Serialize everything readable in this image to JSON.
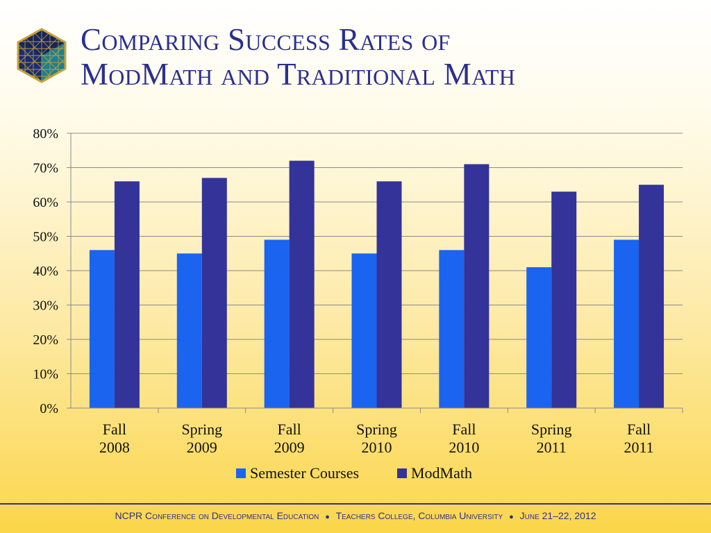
{
  "slide": {
    "title_line1": "Comparing Success Rates of",
    "title_line2": "ModMath and Traditional Math",
    "logo_icon": "hexagon-cube-logo-icon"
  },
  "footer": {
    "part1": "NCPR Conference on Developmental Education",
    "part2": "Teachers College, Columbia University",
    "part3": "June 21–22, 2012",
    "separator": "●"
  },
  "colors": {
    "semester": "#1a64f0",
    "modmath": "#33339a",
    "title": "#2b2f8f"
  },
  "chart_data": {
    "type": "bar",
    "categories": [
      [
        "Fall",
        "2008"
      ],
      [
        "Spring",
        "2009"
      ],
      [
        "Fall",
        "2009"
      ],
      [
        "Spring",
        "2010"
      ],
      [
        "Fall",
        "2010"
      ],
      [
        "Spring",
        "2011"
      ],
      [
        "Fall",
        "2011"
      ]
    ],
    "series": [
      {
        "name": "Semester Courses",
        "values": [
          46,
          45,
          49,
          45,
          46,
          41,
          49
        ]
      },
      {
        "name": "ModMath",
        "values": [
          66,
          67,
          72,
          66,
          71,
          63,
          65
        ]
      }
    ],
    "yticks": [
      "0%",
      "10%",
      "20%",
      "30%",
      "40%",
      "50%",
      "60%",
      "70%",
      "80%"
    ],
    "ylim": [
      0,
      80
    ],
    "grid": true,
    "legend": "bottom"
  }
}
